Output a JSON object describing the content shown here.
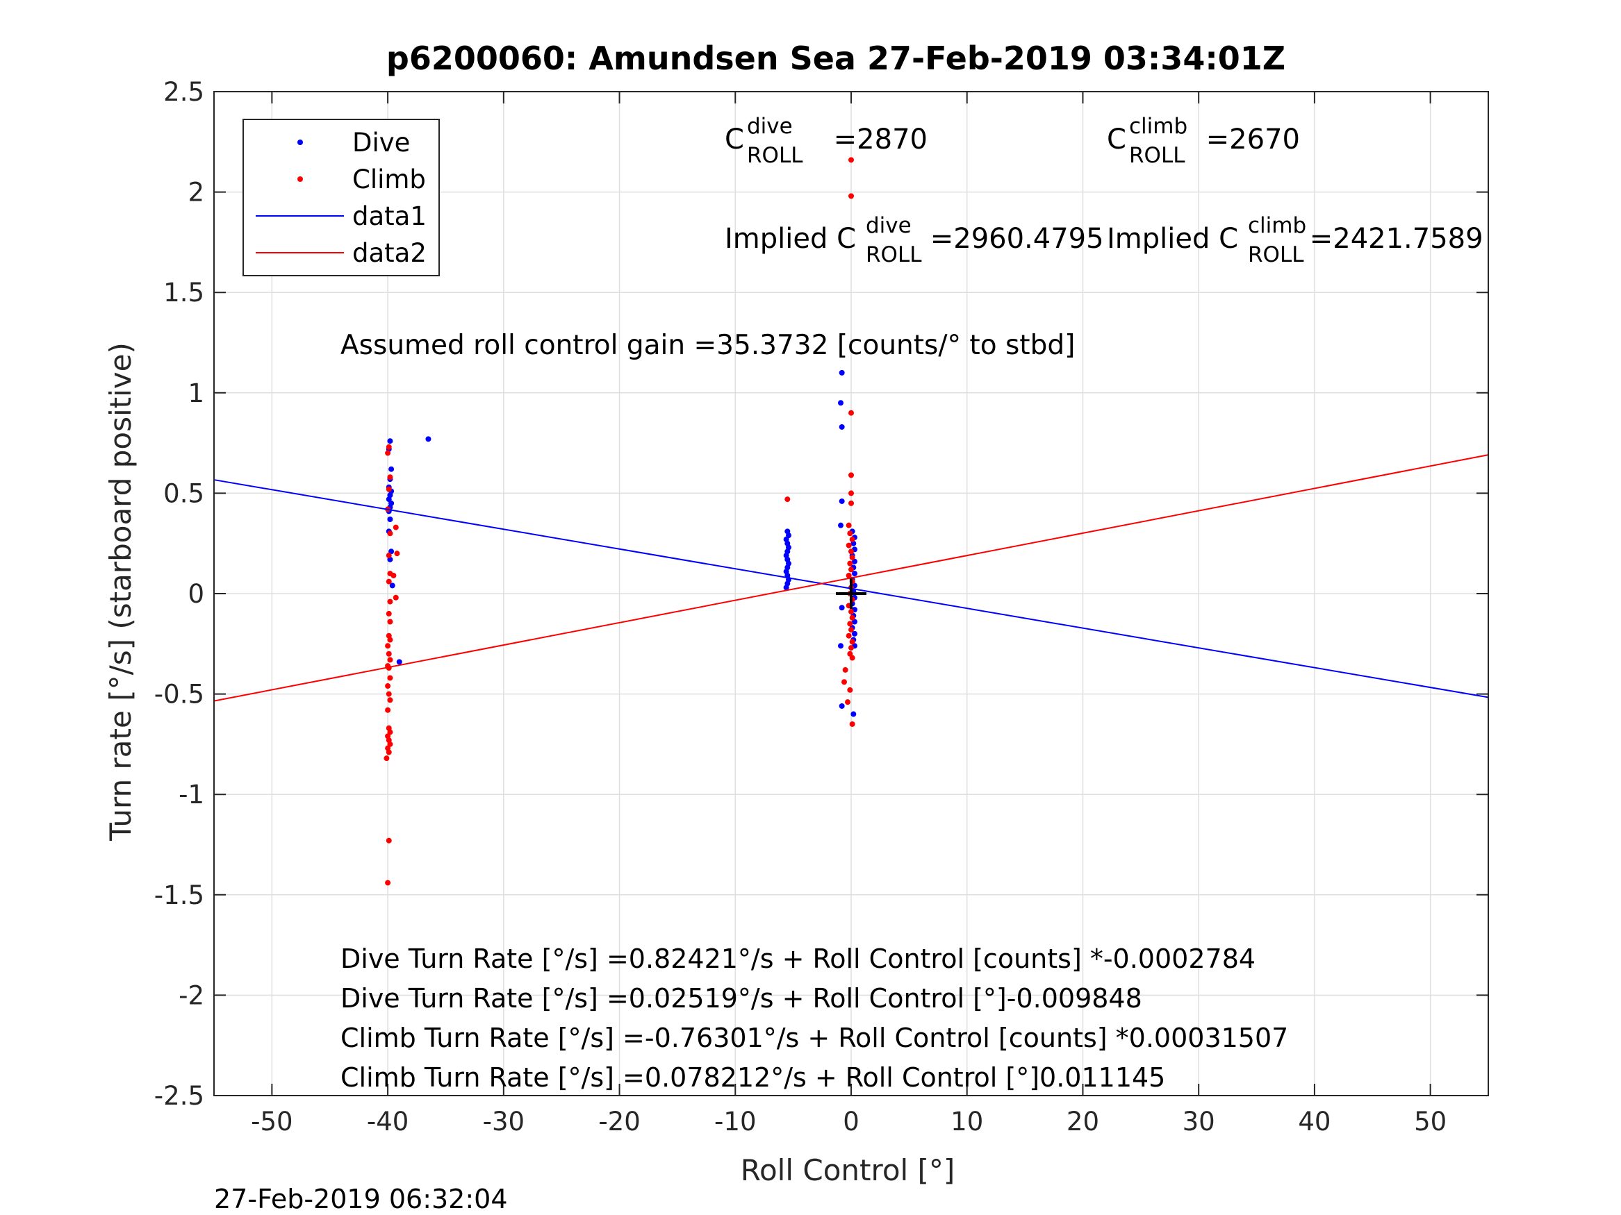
{
  "title": "p6200060: Amundsen Sea 27-Feb-2019 03:34:01Z",
  "timestamp": "27-Feb-2019 06:32:04",
  "chart_data": {
    "type": "scatter",
    "title": "p6200060: Amundsen Sea 27-Feb-2019 03:34:01Z",
    "xlabel": "Roll Control [°]",
    "ylabel": "Turn rate [°/s] (starboard positive)",
    "xlim": [
      -55,
      55
    ],
    "ylim": [
      -2.5,
      2.5
    ],
    "xticks": [
      -50,
      -40,
      -30,
      -20,
      -10,
      0,
      10,
      20,
      30,
      40,
      50
    ],
    "yticks": [
      -2.5,
      -2,
      -1.5,
      -1,
      -0.5,
      0,
      0.5,
      1,
      1.5,
      2,
      2.5
    ],
    "xtick_labels": [
      "-50",
      "-40",
      "-30",
      "-20",
      "-10",
      "0",
      "10",
      "20",
      "30",
      "40",
      "50"
    ],
    "ytick_labels": [
      "-2.5",
      "-2",
      "-1.5",
      "-1",
      "-0.5",
      "0",
      "0.5",
      "1",
      "1.5",
      "2",
      "2.5"
    ],
    "grid": true,
    "legend_position": "top-left",
    "legend": [
      {
        "label": "Dive",
        "kind": "marker",
        "color": "#0000ff"
      },
      {
        "label": "Climb",
        "kind": "marker",
        "color": "#ff0000"
      },
      {
        "label": "data1",
        "kind": "line",
        "color": "#0000ff"
      },
      {
        "label": "data2",
        "kind": "line",
        "color": "#ff0000"
      }
    ],
    "series": [
      {
        "name": "Dive",
        "color": "#0000ff",
        "points": [
          [
            -39.8,
            0.76
          ],
          [
            -39.9,
            0.72
          ],
          [
            -39.7,
            0.62
          ],
          [
            -39.8,
            0.57
          ],
          [
            -39.9,
            0.53
          ],
          [
            -39.7,
            0.51
          ],
          [
            -39.8,
            0.49
          ],
          [
            -39.9,
            0.47
          ],
          [
            -39.7,
            0.45
          ],
          [
            -39.8,
            0.43
          ],
          [
            -39.9,
            0.41
          ],
          [
            -39.8,
            0.37
          ],
          [
            -39.9,
            0.31
          ],
          [
            -39.7,
            0.21
          ],
          [
            -39.8,
            0.17
          ],
          [
            -39.6,
            0.04
          ],
          [
            -36.5,
            0.77
          ],
          [
            -39.0,
            -0.34
          ],
          [
            -5.5,
            0.31
          ],
          [
            -5.4,
            0.29
          ],
          [
            -5.6,
            0.27
          ],
          [
            -5.5,
            0.25
          ],
          [
            -5.4,
            0.23
          ],
          [
            -5.5,
            0.21
          ],
          [
            -5.6,
            0.19
          ],
          [
            -5.5,
            0.17
          ],
          [
            -5.4,
            0.15
          ],
          [
            -5.5,
            0.13
          ],
          [
            -5.6,
            0.11
          ],
          [
            -5.5,
            0.09
          ],
          [
            -5.4,
            0.07
          ],
          [
            -5.5,
            0.05
          ],
          [
            -5.6,
            0.03
          ],
          [
            -0.8,
            1.1
          ],
          [
            -0.9,
            0.95
          ],
          [
            -0.8,
            0.83
          ],
          [
            -0.8,
            0.46
          ],
          [
            -0.9,
            0.34
          ],
          [
            -0.8,
            -0.07
          ],
          [
            -0.9,
            -0.26
          ],
          [
            -0.8,
            -0.56
          ],
          [
            0.2,
            -0.6
          ],
          [
            0.1,
            0.31
          ],
          [
            0.3,
            0.28
          ],
          [
            0.2,
            0.25
          ],
          [
            0.3,
            0.22
          ],
          [
            0.1,
            0.19
          ],
          [
            0.3,
            0.16
          ],
          [
            0.2,
            0.13
          ],
          [
            0.3,
            0.1
          ],
          [
            0.1,
            0.07
          ],
          [
            0.3,
            0.04
          ],
          [
            0.2,
            0.01
          ],
          [
            0.3,
            -0.02
          ],
          [
            0.1,
            -0.05
          ],
          [
            0.3,
            -0.08
          ],
          [
            0.2,
            -0.11
          ],
          [
            0.3,
            -0.14
          ],
          [
            0.1,
            -0.17
          ],
          [
            0.3,
            -0.2
          ],
          [
            0.2,
            -0.23
          ],
          [
            0.3,
            -0.26
          ]
        ]
      },
      {
        "name": "Climb",
        "color": "#ff0000",
        "points": [
          [
            -39.9,
            0.73
          ],
          [
            -40.0,
            0.7
          ],
          [
            -39.8,
            0.58
          ],
          [
            -39.9,
            0.52
          ],
          [
            -40.0,
            0.42
          ],
          [
            -39.3,
            0.33
          ],
          [
            -39.8,
            0.3
          ],
          [
            -39.2,
            0.2
          ],
          [
            -39.9,
            0.19
          ],
          [
            -39.8,
            0.1
          ],
          [
            -39.5,
            0.09
          ],
          [
            -39.9,
            0.06
          ],
          [
            -39.3,
            -0.02
          ],
          [
            -39.8,
            -0.04
          ],
          [
            -39.9,
            -0.1
          ],
          [
            -39.8,
            -0.14
          ],
          [
            -39.9,
            -0.21
          ],
          [
            -39.8,
            -0.23
          ],
          [
            -40.0,
            -0.26
          ],
          [
            -39.9,
            -0.3
          ],
          [
            -39.8,
            -0.33
          ],
          [
            -40.0,
            -0.36
          ],
          [
            -39.9,
            -0.37
          ],
          [
            -39.8,
            -0.42
          ],
          [
            -40.0,
            -0.46
          ],
          [
            -39.9,
            -0.5
          ],
          [
            -39.8,
            -0.53
          ],
          [
            -40.0,
            -0.58
          ],
          [
            -39.9,
            -0.67
          ],
          [
            -39.8,
            -0.69
          ],
          [
            -40.0,
            -0.71
          ],
          [
            -39.9,
            -0.73
          ],
          [
            -39.8,
            -0.75
          ],
          [
            -40.0,
            -0.77
          ],
          [
            -39.9,
            -0.79
          ],
          [
            -40.1,
            -0.82
          ],
          [
            -39.9,
            -1.23
          ],
          [
            -40.0,
            -1.44
          ],
          [
            -5.5,
            0.47
          ],
          [
            0.0,
            2.16
          ],
          [
            0.0,
            1.98
          ],
          [
            0.0,
            0.9
          ],
          [
            0.0,
            0.59
          ],
          [
            0.0,
            0.5
          ],
          [
            0.0,
            0.45
          ],
          [
            -0.2,
            0.34
          ],
          [
            -0.1,
            0.3
          ],
          [
            0.1,
            0.27
          ],
          [
            -0.2,
            0.24
          ],
          [
            0.0,
            0.21
          ],
          [
            0.1,
            0.18
          ],
          [
            -0.1,
            0.15
          ],
          [
            0.0,
            0.12
          ],
          [
            -0.2,
            0.09
          ],
          [
            0.1,
            0.06
          ],
          [
            0.0,
            0.03
          ],
          [
            -0.1,
            0.0
          ],
          [
            0.1,
            -0.03
          ],
          [
            -0.2,
            -0.06
          ],
          [
            0.0,
            -0.09
          ],
          [
            0.1,
            -0.12
          ],
          [
            -0.1,
            -0.15
          ],
          [
            0.0,
            -0.18
          ],
          [
            -0.2,
            -0.21
          ],
          [
            0.1,
            -0.24
          ],
          [
            0.0,
            -0.27
          ],
          [
            -0.1,
            -0.3
          ],
          [
            0.1,
            -0.32
          ],
          [
            -0.5,
            -0.38
          ],
          [
            -0.6,
            -0.44
          ],
          [
            -0.1,
            -0.48
          ],
          [
            -0.3,
            -0.54
          ],
          [
            0.1,
            -0.65
          ]
        ]
      },
      {
        "name": "data1",
        "color": "#0000ff",
        "kind": "line",
        "x": [
          -55,
          55
        ],
        "y": [
          0.56683,
          -0.51645
        ]
      },
      {
        "name": "data2",
        "color": "#ff0000",
        "kind": "line",
        "x": [
          -55,
          55
        ],
        "y": [
          -0.53476,
          0.6912
        ]
      }
    ],
    "marker": {
      "x": 0,
      "y": 0,
      "symbol": "+",
      "color": "#000000"
    }
  },
  "annotations": {
    "c_dive": {
      "base": "C",
      "sup": "dive",
      "sub": "ROLL",
      "value": " =2870"
    },
    "c_climb": {
      "base": "C",
      "sup": "climb",
      "sub": "ROLL",
      "value": " =2670"
    },
    "implied_dive": {
      "base": "Implied C",
      "sup": "dive",
      "sub": "ROLL",
      "value": " =2960.4795"
    },
    "implied_climb": {
      "base": "Implied C",
      "sup": "climb",
      "sub": "ROLL",
      "value": " =2421.7589"
    },
    "gain": "Assumed roll control gain =35.3732 [counts/° to stbd]",
    "eq1": "Dive Turn Rate [°/s] =0.82421°/s + Roll Control [counts] *-0.0002784",
    "eq2": "Dive Turn Rate [°/s] =0.02519°/s + Roll Control [°]-0.009848",
    "eq3": "Climb Turn Rate [°/s] =-0.76301°/s + Roll Control [counts] *0.00031507",
    "eq4": "Climb Turn Rate [°/s] =0.078212°/s + Roll Control [°]0.011145"
  }
}
